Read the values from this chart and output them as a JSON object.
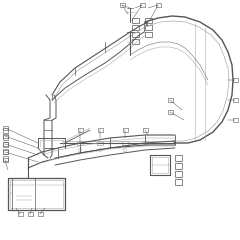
{
  "background_color": "#ffffff",
  "line_color": "#aaaaaa",
  "mid_color": "#888888",
  "dark_color": "#555555",
  "figsize": [
    2.4,
    2.4
  ],
  "dpi": 100
}
